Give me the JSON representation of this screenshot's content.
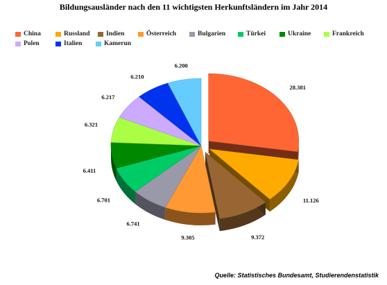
{
  "chart_data": {
    "type": "pie",
    "title": "Bildungsausländer nach den 11 wichtigsten Herkunftsländern im Jahr 2014",
    "categories": [
      "China",
      "Russland",
      "Indien",
      "Österreich",
      "Bulgarien",
      "Türkei",
      "Ukraine",
      "Frankreich",
      "Polen",
      "Italien",
      "Kamerun"
    ],
    "values": [
      28381,
      11126,
      9372,
      9305,
      6741,
      6701,
      6411,
      6321,
      6217,
      6210,
      6200
    ],
    "value_labels": [
      "28.381",
      "11.126",
      "9.372",
      "9.305",
      "6.741",
      "6.701",
      "6.411",
      "6.321",
      "6.217",
      "6.210",
      "6.200"
    ],
    "colors": [
      "#ff6633",
      "#ffaa00",
      "#996633",
      "#ff9933",
      "#9999aa",
      "#00cc66",
      "#008800",
      "#aaff44",
      "#ccaaff",
      "#0033ee",
      "#66ccff"
    ],
    "exploded": [
      "China",
      "Russland",
      "Indien"
    ],
    "legend_position": "top"
  },
  "source": "Quelle: Statistisches Bundesamt, Studierendenstatistik"
}
